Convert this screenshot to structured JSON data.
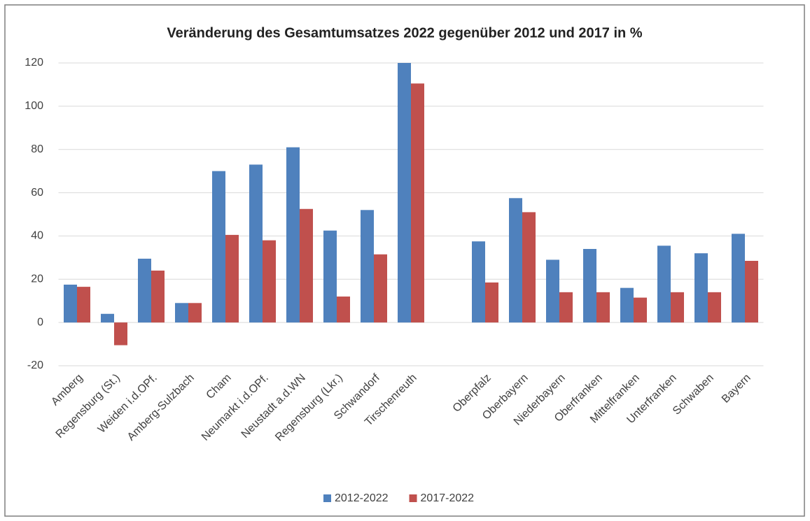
{
  "chart_data": {
    "type": "bar",
    "title": "Veränderung des Gesamtumsatzes 2022 gegenüber 2012 und 2017 in %",
    "categories": [
      "Amberg",
      "Regensburg (St.)",
      "Weiden i.d.OPf.",
      "Amberg-Sulzbach",
      "Cham",
      "Neumarkt i.d.OPf.",
      "Neustadt a.d.WN",
      "Regensburg (Lkr.)",
      "Schwandorf",
      "Tirschenreuth",
      null,
      "Oberpfalz",
      "Oberbayern",
      "Niederbayern",
      "Oberfranken",
      "Mittelfranken",
      "Unterfranken",
      "Schwaben",
      "Bayern"
    ],
    "series": [
      {
        "name": "2012-2022",
        "color": "#4f81bd",
        "values": [
          17.5,
          4,
          29.5,
          9,
          70,
          73,
          81,
          42.5,
          52,
          120,
          null,
          37.5,
          57.5,
          29,
          34,
          16,
          35.5,
          32,
          41
        ]
      },
      {
        "name": "2017-2022",
        "color": "#c0504d",
        "values": [
          16.5,
          -10.5,
          24,
          9,
          40.5,
          38,
          52.5,
          12,
          31.5,
          110.5,
          null,
          18.5,
          51,
          14,
          14,
          11.5,
          14,
          14,
          28.5
        ]
      }
    ],
    "ylim": [
      -20,
      120
    ],
    "yticks": [
      -20,
      0,
      20,
      40,
      60,
      80,
      100,
      120
    ],
    "grid": true,
    "legend": "bottom"
  }
}
